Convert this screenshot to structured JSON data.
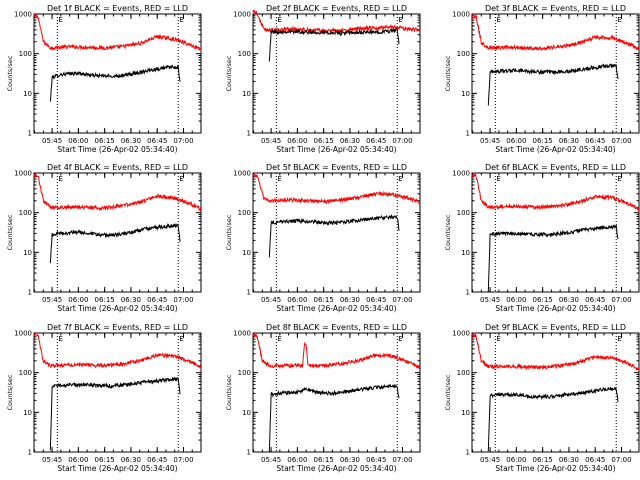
{
  "chart_data": [
    {
      "type": "line",
      "title": "Det 1f BLACK = Events, RED = LLD",
      "xlabel": "Start Time (26-Apr-02 05:34:40)",
      "ylabel": "Counts/sec",
      "yscale": "log",
      "ylim": [
        1,
        1000
      ],
      "y_ticks": [
        "1",
        "10",
        "100",
        "1000"
      ],
      "x_ticks": [
        "05:45",
        "06:00",
        "06:15",
        "06:30",
        "06:45",
        "07:00"
      ],
      "xlim": [
        "05:34:40",
        "07:10:00"
      ],
      "vlines": [
        "05:48",
        "06:57"
      ],
      "vline_marker": "E",
      "series": [
        {
          "color": "#ff0000",
          "x": [
            "05:34",
            "05:37",
            "05:40",
            "05:44",
            "05:55",
            "06:05",
            "06:15",
            "06:25",
            "06:35",
            "06:45",
            "06:55",
            "07:05",
            "07:10"
          ],
          "y": [
            900,
            850,
            200,
            140,
            150,
            145,
            140,
            150,
            180,
            270,
            230,
            160,
            130
          ]
        },
        {
          "color": "#000000",
          "x": [
            "05:44",
            "05:45",
            "05:50",
            "06:00",
            "06:10",
            "06:20",
            "06:30",
            "06:40",
            "06:50",
            "06:57",
            "06:58"
          ],
          "y": [
            6,
            25,
            30,
            32,
            28,
            27,
            30,
            38,
            45,
            45,
            18
          ]
        }
      ]
    },
    {
      "type": "line",
      "title": "Det 2f BLACK = Events, RED = LLD",
      "xlabel": "Start Time (26-Apr-02 05:34:40)",
      "ylabel": "Counts/sec",
      "yscale": "log",
      "ylim": [
        1,
        1000
      ],
      "y_ticks": [
        "1",
        "10",
        "100",
        "1000"
      ],
      "x_ticks": [
        "05:45",
        "06:00",
        "06:15",
        "06:30",
        "06:45",
        "07:00"
      ],
      "xlim": [
        "05:34:40",
        "07:10:00"
      ],
      "vlines": [
        "05:48",
        "06:57"
      ],
      "vline_marker": "E",
      "series": [
        {
          "color": "#ff0000",
          "x": [
            "05:34",
            "05:37",
            "05:41",
            "05:44",
            "05:55",
            "06:05",
            "06:15",
            "06:25",
            "06:35",
            "06:45",
            "06:55",
            "07:05",
            "07:10"
          ],
          "y": [
            1300,
            1000,
            400,
            390,
            420,
            400,
            380,
            380,
            420,
            450,
            470,
            410,
            400
          ]
        },
        {
          "color": "#000000",
          "x": [
            "05:44",
            "05:45",
            "05:55",
            "06:05",
            "06:15",
            "06:25",
            "06:35",
            "06:45",
            "06:55",
            "06:57",
            "06:58"
          ],
          "y": [
            70,
            350,
            360,
            350,
            340,
            330,
            340,
            350,
            380,
            380,
            180
          ]
        }
      ]
    },
    {
      "type": "line",
      "title": "Det 3f BLACK = Events, RED = LLD",
      "xlabel": "Start Time (26-Apr-02 05:34:40)",
      "ylabel": "Counts/sec",
      "yscale": "log",
      "ylim": [
        1,
        1000
      ],
      "y_ticks": [
        "1",
        "10",
        "100",
        "1000"
      ],
      "x_ticks": [
        "05:45",
        "06:00",
        "06:15",
        "06:30",
        "06:45",
        "07:00"
      ],
      "xlim": [
        "05:34:40",
        "07:10:00"
      ],
      "vlines": [
        "05:48",
        "06:57"
      ],
      "vline_marker": "E",
      "series": [
        {
          "color": "#ff0000",
          "x": [
            "05:34",
            "05:37",
            "05:40",
            "05:44",
            "05:55",
            "06:05",
            "06:15",
            "06:25",
            "06:35",
            "06:45",
            "06:55",
            "07:05",
            "07:10"
          ],
          "y": [
            900,
            850,
            190,
            140,
            145,
            140,
            135,
            150,
            180,
            260,
            250,
            170,
            130
          ]
        },
        {
          "color": "#000000",
          "x": [
            "05:44",
            "05:45",
            "05:50",
            "06:00",
            "06:10",
            "06:20",
            "06:30",
            "06:40",
            "06:50",
            "06:57",
            "06:58"
          ],
          "y": [
            5,
            35,
            36,
            38,
            35,
            34,
            36,
            42,
            48,
            50,
            22
          ]
        }
      ]
    },
    {
      "type": "line",
      "title": "Det 4f BLACK = Events, RED = LLD",
      "xlabel": "Start Time (26-Apr-02 05:34:40)",
      "ylabel": "Counts/sec",
      "yscale": "log",
      "ylim": [
        1,
        1000
      ],
      "y_ticks": [
        "1",
        "10",
        "100",
        "1000"
      ],
      "x_ticks": [
        "05:45",
        "06:00",
        "06:15",
        "06:30",
        "06:45",
        "07:00"
      ],
      "xlim": [
        "05:34:40",
        "07:10:00"
      ],
      "vlines": [
        "05:48",
        "06:57"
      ],
      "vline_marker": "E",
      "series": [
        {
          "color": "#ff0000",
          "x": [
            "05:34",
            "05:37",
            "05:40",
            "05:44",
            "05:55",
            "06:05",
            "06:15",
            "06:25",
            "06:35",
            "06:45",
            "06:55",
            "07:05",
            "07:10"
          ],
          "y": [
            900,
            850,
            200,
            135,
            140,
            135,
            130,
            150,
            180,
            260,
            230,
            160,
            120
          ]
        },
        {
          "color": "#000000",
          "x": [
            "05:44",
            "05:45",
            "05:50",
            "06:00",
            "06:10",
            "06:20",
            "06:30",
            "06:40",
            "06:50",
            "06:57",
            "06:58"
          ],
          "y": [
            5,
            28,
            30,
            32,
            28,
            27,
            32,
            40,
            45,
            48,
            20
          ]
        }
      ]
    },
    {
      "type": "line",
      "title": "Det 5f BLACK = Events, RED = LLD",
      "xlabel": "Start Time (26-Apr-02 05:34:40)",
      "ylabel": "Counts/sec",
      "yscale": "log",
      "ylim": [
        1,
        1000
      ],
      "y_ticks": [
        "1",
        "10",
        "100",
        "1000"
      ],
      "x_ticks": [
        "05:45",
        "06:00",
        "06:15",
        "06:30",
        "06:45",
        "07:00"
      ],
      "xlim": [
        "05:34:40",
        "07:10:00"
      ],
      "vlines": [
        "05:48",
        "06:57"
      ],
      "vline_marker": "E",
      "series": [
        {
          "color": "#ff0000",
          "x": [
            "05:34",
            "05:37",
            "05:41",
            "05:44",
            "05:55",
            "06:05",
            "06:15",
            "06:25",
            "06:35",
            "06:45",
            "06:55",
            "07:05",
            "07:10"
          ],
          "y": [
            900,
            850,
            220,
            200,
            210,
            200,
            190,
            210,
            240,
            300,
            290,
            220,
            180
          ]
        },
        {
          "color": "#000000",
          "x": [
            "05:44",
            "05:45",
            "05:50",
            "06:00",
            "06:10",
            "06:20",
            "06:30",
            "06:40",
            "06:50",
            "06:57",
            "06:58"
          ],
          "y": [
            8,
            55,
            60,
            62,
            58,
            55,
            60,
            70,
            75,
            78,
            35
          ]
        }
      ]
    },
    {
      "type": "line",
      "title": "Det 6f BLACK = Events, RED = LLD",
      "xlabel": "Start Time (26-Apr-02 05:34:40)",
      "ylabel": "Counts/sec",
      "yscale": "log",
      "ylim": [
        1,
        1000
      ],
      "y_ticks": [
        "1",
        "10",
        "100",
        "1000"
      ],
      "x_ticks": [
        "05:45",
        "06:00",
        "06:15",
        "06:30",
        "06:45",
        "07:00"
      ],
      "xlim": [
        "05:34:40",
        "07:10:00"
      ],
      "vlines": [
        "05:48",
        "06:57"
      ],
      "vline_marker": "E",
      "series": [
        {
          "color": "#ff0000",
          "x": [
            "05:34",
            "05:37",
            "05:40",
            "05:44",
            "05:55",
            "06:05",
            "06:15",
            "06:25",
            "06:35",
            "06:45",
            "06:55",
            "07:05",
            "07:10"
          ],
          "y": [
            900,
            850,
            200,
            140,
            145,
            140,
            135,
            150,
            180,
            250,
            240,
            160,
            120
          ]
        },
        {
          "color": "#000000",
          "x": [
            "05:44",
            "05:45",
            "05:50",
            "06:00",
            "06:10",
            "06:20",
            "06:30",
            "06:40",
            "06:50",
            "06:57",
            "06:58"
          ],
          "y": [
            1,
            28,
            30,
            30,
            28,
            28,
            32,
            38,
            42,
            45,
            20
          ]
        }
      ]
    },
    {
      "type": "line",
      "title": "Det 7f BLACK = Events, RED = LLD",
      "xlabel": "Start Time (26-Apr-02 05:34:40)",
      "ylabel": "Counts/sec",
      "yscale": "log",
      "ylim": [
        1,
        1000
      ],
      "y_ticks": [
        "1",
        "10",
        "100",
        "1000"
      ],
      "x_ticks": [
        "05:45",
        "06:00",
        "06:15",
        "06:30",
        "06:45",
        "07:00"
      ],
      "xlim": [
        "05:34:40",
        "07:10:00"
      ],
      "vlines": [
        "05:48",
        "06:57"
      ],
      "vline_marker": "E",
      "series": [
        {
          "color": "#ff0000",
          "x": [
            "05:34",
            "05:37",
            "05:40",
            "05:44",
            "05:55",
            "06:05",
            "06:15",
            "06:25",
            "06:35",
            "06:45",
            "06:55",
            "07:05",
            "07:10"
          ],
          "y": [
            900,
            850,
            200,
            150,
            160,
            155,
            150,
            165,
            200,
            280,
            260,
            180,
            140
          ]
        },
        {
          "color": "#000000",
          "x": [
            "05:44",
            "05:45",
            "05:50",
            "06:00",
            "06:10",
            "06:20",
            "06:30",
            "06:40",
            "06:50",
            "06:57",
            "06:58"
          ],
          "y": [
            1,
            45,
            48,
            50,
            48,
            46,
            52,
            60,
            65,
            68,
            30
          ]
        }
      ]
    },
    {
      "type": "line",
      "title": "Det 8f BLACK = Events, RED = LLD",
      "xlabel": "Start Time (26-Apr-02 05:34:40)",
      "ylabel": "Counts/sec",
      "yscale": "log",
      "ylim": [
        1,
        1000
      ],
      "y_ticks": [
        "1",
        "10",
        "100",
        "1000"
      ],
      "x_ticks": [
        "05:45",
        "06:00",
        "06:15",
        "06:30",
        "06:45",
        "07:00"
      ],
      "xlim": [
        "05:34:40",
        "07:10:00"
      ],
      "vlines": [
        "05:48",
        "06:57"
      ],
      "vline_marker": "E",
      "series": [
        {
          "color": "#ff0000",
          "x": [
            "05:34",
            "05:37",
            "05:40",
            "05:44",
            "05:55",
            "06:03",
            "06:04",
            "06:05",
            "06:06",
            "06:15",
            "06:25",
            "06:35",
            "06:45",
            "06:55",
            "07:05",
            "07:10"
          ],
          "y": [
            900,
            850,
            200,
            150,
            150,
            150,
            500,
            480,
            150,
            150,
            170,
            200,
            280,
            260,
            170,
            130
          ]
        },
        {
          "color": "#000000",
          "x": [
            "05:44",
            "05:45",
            "05:50",
            "06:00",
            "06:05",
            "06:10",
            "06:20",
            "06:30",
            "06:40",
            "06:50",
            "06:57",
            "06:58"
          ],
          "y": [
            1,
            28,
            30,
            32,
            40,
            32,
            30,
            34,
            40,
            45,
            45,
            22
          ]
        }
      ]
    },
    {
      "type": "line",
      "title": "Det 9f BLACK = Events, RED = LLD",
      "xlabel": "Start Time (26-Apr-02 05:34:40)",
      "ylabel": "Counts/sec",
      "yscale": "log",
      "ylim": [
        1,
        1000
      ],
      "y_ticks": [
        "1",
        "10",
        "100",
        "1000"
      ],
      "x_ticks": [
        "05:45",
        "06:00",
        "06:15",
        "06:30",
        "06:45",
        "07:00"
      ],
      "xlim": [
        "05:34:40",
        "07:10:00"
      ],
      "vlines": [
        "05:48",
        "06:57"
      ],
      "vline_marker": "E",
      "series": [
        {
          "color": "#ff0000",
          "x": [
            "05:34",
            "05:37",
            "05:40",
            "05:44",
            "05:55",
            "06:05",
            "06:15",
            "06:25",
            "06:35",
            "06:45",
            "06:55",
            "07:05",
            "07:10"
          ],
          "y": [
            900,
            850,
            200,
            140,
            145,
            140,
            135,
            150,
            180,
            250,
            240,
            160,
            120
          ]
        },
        {
          "color": "#000000",
          "x": [
            "05:44",
            "05:45",
            "05:50",
            "06:00",
            "06:10",
            "06:20",
            "06:30",
            "06:40",
            "06:50",
            "06:57",
            "06:58"
          ],
          "y": [
            1,
            26,
            28,
            28,
            24,
            25,
            28,
            32,
            38,
            40,
            20
          ]
        }
      ]
    }
  ]
}
